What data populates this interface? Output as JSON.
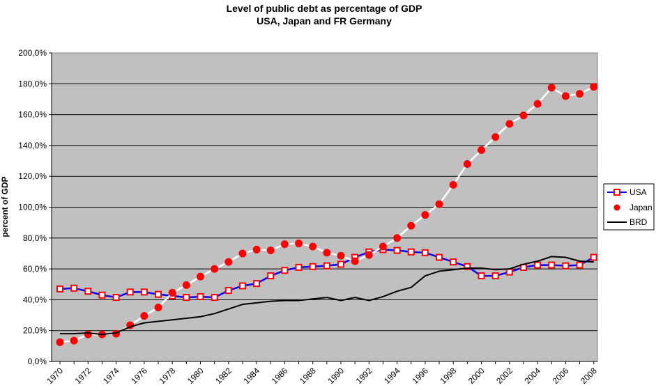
{
  "chart_data": {
    "type": "line",
    "title": "Level of public debt as percentage of GDP",
    "subtitle": "USA, Japan and FR Germany",
    "xlabel": "",
    "ylabel": "percent of GDP",
    "ylim": [
      0,
      200
    ],
    "y_ticks": [
      "0,0%",
      "20,0%",
      "40,0%",
      "60,0%",
      "80,0%",
      "100,0%",
      "120,0%",
      "140,0%",
      "160,0%",
      "180,0%",
      "200,0%"
    ],
    "x_tick_labels": [
      "1970",
      "1972",
      "1974",
      "1976",
      "1978",
      "1980",
      "1982",
      "1984",
      "1986",
      "1988",
      "1990",
      "1992",
      "1994",
      "1996",
      "1998",
      "2000",
      "2002",
      "2004",
      "2006",
      "2008"
    ],
    "grid": true,
    "legend_position": "right",
    "colors": {
      "plot_background": "#c0c0c0",
      "usa_line": "#0000ff",
      "usa_marker": "#ff0000",
      "japan_line": "#ffffff",
      "japan_marker": "#ff0000",
      "brd_line": "#000000"
    },
    "x": [
      1970,
      1971,
      1972,
      1973,
      1974,
      1975,
      1976,
      1977,
      1978,
      1979,
      1980,
      1981,
      1982,
      1983,
      1984,
      1985,
      1986,
      1987,
      1988,
      1989,
      1990,
      1991,
      1992,
      1993,
      1994,
      1995,
      1996,
      1997,
      1998,
      1999,
      2000,
      2001,
      2002,
      2003,
      2004,
      2005,
      2006,
      2007,
      2008
    ],
    "series": [
      {
        "name": "USA",
        "values": [
          47,
          47.5,
          45.5,
          43,
          41.5,
          45,
          45,
          43.5,
          42.5,
          41.5,
          42,
          41.5,
          46,
          49,
          50.5,
          55.5,
          59,
          61,
          61.5,
          62,
          63,
          67.5,
          71,
          72.5,
          72,
          71,
          70.5,
          67.5,
          64.5,
          61.5,
          55.5,
          55.5,
          58,
          61,
          62.5,
          62.5,
          62,
          62.5,
          67.5
        ]
      },
      {
        "name": "Japan",
        "values": [
          12.5,
          13.5,
          17.5,
          17.5,
          18,
          23.5,
          29.5,
          35,
          44.5,
          49.5,
          55,
          60,
          64.5,
          70,
          72.5,
          72,
          76,
          76.5,
          74.5,
          70.5,
          68.5,
          65,
          69,
          74.5,
          80,
          88,
          95,
          102,
          114.5,
          128,
          137,
          145.5,
          154,
          159.5,
          167,
          177.5,
          172,
          173.5,
          178
        ]
      },
      {
        "name": "BRD",
        "values": [
          18,
          18,
          18.5,
          17.5,
          18.5,
          22.5,
          25,
          26,
          27,
          28,
          29,
          31,
          34,
          37,
          38,
          39,
          39.5,
          39.5,
          40.5,
          41.5,
          39.5,
          41.5,
          39.5,
          42,
          45.5,
          48,
          55.5,
          58.5,
          59.5,
          60.5,
          60.5,
          59.5,
          60,
          63,
          65,
          68,
          67.5,
          65,
          64.5
        ]
      }
    ]
  }
}
